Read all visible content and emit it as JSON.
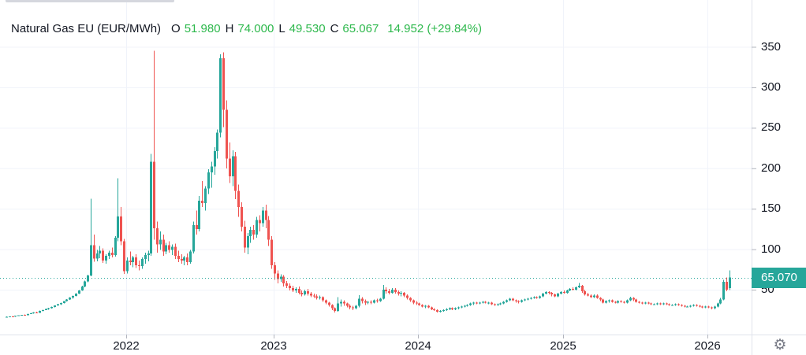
{
  "legend": {
    "symbol": "Natural Gas EU (EUR/MWh)",
    "o_label": "O",
    "o_value": "51.980",
    "h_label": "H",
    "h_value": "74.000",
    "l_label": "L",
    "l_value": "49.530",
    "c_label": "C",
    "c_value": "65.067",
    "change": "14.952 (+29.84%)"
  },
  "price_axis": {
    "ticks": [
      350,
      300,
      250,
      200,
      150,
      100,
      50
    ],
    "current_price_label": "65.070"
  },
  "time_axis": {
    "ticks": [
      {
        "label": "2022",
        "candle_index": 40
      },
      {
        "label": "2023",
        "candle_index": 89
      },
      {
        "label": "2024",
        "candle_index": 137
      },
      {
        "label": "2025",
        "candle_index": 185
      },
      {
        "label": "2026",
        "candle_index": 233
      }
    ]
  },
  "toolbar": {
    "settings_glyph": "⚙",
    "settings_icon": "gear-icon"
  },
  "colors": {
    "up": "#26a69a",
    "down": "#ef5350",
    "legend_green": "#2DB84C",
    "text": "#131722",
    "grid": "#f0f3fa",
    "border": "#e0e3eb",
    "tick": "#b2b5be",
    "icon": "#787b86",
    "price_tag_bg": "#26a69a"
  },
  "chart_data": {
    "type": "candlestick",
    "title": "Natural Gas EU",
    "unit": "EUR/MWh",
    "timeframe": "1W",
    "x_range": [
      "2021-03",
      "2026-02"
    ],
    "ylim": [
      0,
      365
    ],
    "grid": true,
    "current_price": 65.07,
    "latest": {
      "open": 51.98,
      "high": 74.0,
      "low": 49.53,
      "close": 65.067,
      "change": 14.952,
      "change_pct": 29.84
    },
    "candles_format": [
      "open",
      "high",
      "low",
      "close"
    ],
    "candles": [
      [
        16.2,
        16.8,
        15.9,
        16.5
      ],
      [
        16.5,
        17.2,
        16.1,
        17
      ],
      [
        17,
        17.4,
        16.5,
        16.8
      ],
      [
        16.8,
        18.1,
        16.6,
        17.9
      ],
      [
        17.9,
        18.6,
        17.4,
        18.4
      ],
      [
        18.4,
        19.2,
        18,
        19
      ],
      [
        19,
        19.6,
        18.3,
        18.7
      ],
      [
        18.7,
        20.4,
        18.5,
        20.1
      ],
      [
        20.1,
        21.3,
        19.8,
        21
      ],
      [
        21,
        22.4,
        20.6,
        22.1
      ],
      [
        22.1,
        23,
        21.2,
        21.6
      ],
      [
        21.6,
        24.2,
        21.4,
        23.9
      ],
      [
        23.9,
        25.3,
        23.5,
        25
      ],
      [
        25,
        26.6,
        24.6,
        26.2
      ],
      [
        26.2,
        27.5,
        25.4,
        27.1
      ],
      [
        27.1,
        29,
        26.8,
        28.6
      ],
      [
        28.6,
        30.8,
        28.2,
        30.4
      ],
      [
        30.4,
        32.6,
        30,
        32.2
      ],
      [
        32.2,
        34,
        31.1,
        33.5
      ],
      [
        33.5,
        36.2,
        33.1,
        35.8
      ],
      [
        35.8,
        38.4,
        35.3,
        38
      ],
      [
        38,
        40.6,
        37.5,
        40.2
      ],
      [
        40.2,
        42.8,
        39,
        42.3
      ],
      [
        42.3,
        45.6,
        41.8,
        45.1
      ],
      [
        45.1,
        49.8,
        44.6,
        49.2
      ],
      [
        49.2,
        54.7,
        48.5,
        54
      ],
      [
        54,
        61.2,
        53.2,
        60.3
      ],
      [
        60.3,
        68.5,
        59.4,
        67.4
      ],
      [
        67.4,
        162.5,
        66.8,
        105
      ],
      [
        105,
        118,
        84.6,
        88.3
      ],
      [
        88.3,
        99,
        85.1,
        95
      ],
      [
        95,
        104,
        89,
        98
      ],
      [
        98,
        101,
        83,
        86
      ],
      [
        86,
        94,
        82,
        92
      ],
      [
        92,
        98,
        88,
        96
      ],
      [
        96,
        102,
        90,
        93
      ],
      [
        93,
        116,
        91,
        114
      ],
      [
        114,
        187.8,
        110,
        140.5
      ],
      [
        140.5,
        152,
        105,
        110
      ],
      [
        110,
        113,
        69.5,
        73
      ],
      [
        73,
        90,
        70,
        86
      ],
      [
        86,
        97,
        80,
        84
      ],
      [
        84,
        92,
        78,
        90
      ],
      [
        90,
        94,
        77,
        80
      ],
      [
        80,
        86,
        74,
        79
      ],
      [
        79,
        90,
        76,
        88
      ],
      [
        88,
        96,
        82,
        93
      ],
      [
        93,
        98,
        85,
        95
      ],
      [
        95,
        218,
        92,
        208
      ],
      [
        208,
        345,
        112,
        126
      ],
      [
        126,
        134,
        96,
        106
      ],
      [
        106,
        122,
        99,
        112
      ],
      [
        112,
        118,
        92,
        97
      ],
      [
        97,
        108,
        94,
        105
      ],
      [
        105,
        110,
        96,
        99
      ],
      [
        99,
        106,
        93,
        103
      ],
      [
        103,
        107,
        88,
        92
      ],
      [
        92,
        98,
        84,
        88
      ],
      [
        88,
        94,
        82,
        86
      ],
      [
        86,
        92,
        80,
        90
      ],
      [
        90,
        95,
        80,
        84
      ],
      [
        84,
        99,
        82,
        97
      ],
      [
        97,
        134,
        95,
        130
      ],
      [
        130,
        148,
        118,
        125
      ],
      [
        125,
        166,
        122,
        160
      ],
      [
        160,
        184,
        152,
        157
      ],
      [
        157,
        178,
        148,
        175
      ],
      [
        175,
        199,
        168,
        195
      ],
      [
        195,
        208,
        176,
        202
      ],
      [
        202,
        226,
        192,
        221
      ],
      [
        221,
        248,
        212,
        244
      ],
      [
        244,
        341,
        238,
        336
      ],
      [
        336,
        343,
        251,
        272
      ],
      [
        272,
        284,
        200,
        212
      ],
      [
        212,
        232,
        182,
        190
      ],
      [
        190,
        222,
        178,
        215
      ],
      [
        215,
        220,
        162,
        172
      ],
      [
        172,
        180,
        140,
        152
      ],
      [
        152,
        158,
        122,
        128
      ],
      [
        128,
        135,
        96,
        102
      ],
      [
        102,
        120,
        94,
        116
      ],
      [
        116,
        128,
        108,
        124
      ],
      [
        124,
        130,
        112,
        118
      ],
      [
        118,
        140,
        114,
        136
      ],
      [
        136,
        142,
        122,
        132
      ],
      [
        132,
        152,
        128,
        148
      ],
      [
        148,
        155,
        126,
        136
      ],
      [
        136,
        141,
        104,
        112
      ],
      [
        112,
        116,
        76,
        80
      ],
      [
        80,
        84,
        62,
        70
      ],
      [
        70,
        74,
        58,
        63
      ],
      [
        63,
        69,
        60,
        66
      ],
      [
        66,
        68,
        54,
        58
      ],
      [
        58,
        61,
        52,
        55
      ],
      [
        55,
        58,
        49,
        52
      ],
      [
        52,
        55,
        47,
        49
      ],
      [
        49,
        53,
        46,
        51
      ],
      [
        51,
        54,
        44,
        46
      ],
      [
        46,
        49,
        42,
        44
      ],
      [
        44,
        50,
        43,
        48
      ],
      [
        48,
        51,
        43,
        45
      ],
      [
        45,
        47,
        41,
        43
      ],
      [
        43,
        45,
        40,
        42
      ],
      [
        42,
        44,
        38,
        40
      ],
      [
        40,
        43,
        38,
        41
      ],
      [
        41,
        42,
        35,
        37
      ],
      [
        37,
        38,
        32,
        34
      ],
      [
        34,
        35,
        29,
        31
      ],
      [
        31,
        32,
        25,
        27
      ],
      [
        27,
        28,
        22,
        24
      ],
      [
        24,
        41,
        23,
        33
      ],
      [
        33,
        38,
        29,
        35
      ],
      [
        35,
        37,
        30,
        33
      ],
      [
        33,
        34,
        28,
        30
      ],
      [
        30,
        32,
        26,
        28
      ],
      [
        28,
        30,
        25,
        27
      ],
      [
        27,
        31,
        26,
        30
      ],
      [
        30,
        43.5,
        28,
        39
      ],
      [
        39,
        41,
        33,
        36
      ],
      [
        36,
        38,
        31,
        34
      ],
      [
        34,
        36,
        32,
        35
      ],
      [
        35,
        37,
        32,
        34
      ],
      [
        34,
        38,
        33,
        37
      ],
      [
        37,
        39,
        34,
        36
      ],
      [
        36,
        40,
        35,
        39
      ],
      [
        39,
        56,
        38,
        50
      ],
      [
        50,
        53,
        45,
        48
      ],
      [
        48,
        51,
        44,
        46
      ],
      [
        46,
        52,
        45,
        50
      ],
      [
        50,
        52,
        45,
        47
      ],
      [
        47,
        49,
        43,
        45
      ],
      [
        45,
        48,
        42,
        46
      ],
      [
        46,
        47,
        41,
        43
      ],
      [
        43,
        44,
        38,
        40
      ],
      [
        40,
        41,
        35,
        37
      ],
      [
        37,
        38,
        32,
        34
      ],
      [
        34,
        36,
        31,
        33
      ],
      [
        33,
        34,
        30,
        31
      ],
      [
        31,
        32,
        28,
        29
      ],
      [
        29,
        31,
        27,
        30
      ],
      [
        30,
        31,
        27,
        28
      ],
      [
        28,
        29,
        25,
        26
      ],
      [
        26,
        27,
        24,
        25
      ],
      [
        25,
        26,
        22,
        23
      ],
      [
        23,
        25,
        22,
        24
      ],
      [
        24,
        26,
        23,
        25
      ],
      [
        25,
        27,
        24,
        26
      ],
      [
        26,
        28,
        25,
        27
      ],
      [
        27,
        28,
        25,
        26
      ],
      [
        26,
        28,
        25,
        27
      ],
      [
        27,
        29,
        26,
        28
      ],
      [
        28,
        30,
        27,
        29
      ],
      [
        29,
        31,
        28,
        30
      ],
      [
        30,
        32,
        29,
        31
      ],
      [
        31,
        34,
        30,
        33
      ],
      [
        33,
        35,
        31,
        34
      ],
      [
        34,
        35,
        32,
        33
      ],
      [
        33,
        35,
        32,
        34
      ],
      [
        34,
        36,
        33,
        35
      ],
      [
        35,
        36,
        33,
        34
      ],
      [
        34,
        35,
        32,
        34
      ],
      [
        34,
        35,
        31,
        32
      ],
      [
        32,
        33,
        30,
        31
      ],
      [
        31,
        33,
        30,
        32
      ],
      [
        32,
        34,
        31,
        33
      ],
      [
        33,
        36,
        32,
        35
      ],
      [
        35,
        38,
        34,
        37
      ],
      [
        37,
        40,
        36,
        39
      ],
      [
        39,
        40,
        36,
        37
      ],
      [
        37,
        38,
        34,
        36
      ],
      [
        36,
        37,
        33,
        35
      ],
      [
        35,
        38,
        34,
        37
      ],
      [
        37,
        39,
        36,
        38
      ],
      [
        38,
        40,
        37,
        39
      ],
      [
        39,
        41,
        38,
        40
      ],
      [
        40,
        42,
        39,
        41
      ],
      [
        41,
        42,
        39,
        40
      ],
      [
        40,
        43,
        39,
        42
      ],
      [
        42,
        46,
        41,
        45
      ],
      [
        45,
        48,
        44,
        47
      ],
      [
        47,
        48,
        44,
        46
      ],
      [
        46,
        47,
        42,
        44
      ],
      [
        44,
        45,
        41,
        42
      ],
      [
        42,
        46,
        41,
        45
      ],
      [
        45,
        48,
        44,
        47
      ],
      [
        47,
        49,
        45,
        46
      ],
      [
        46,
        50,
        45,
        49
      ],
      [
        49,
        52,
        48,
        51
      ],
      [
        51,
        53,
        49,
        50
      ],
      [
        50,
        54,
        49,
        53
      ],
      [
        53,
        58.3,
        52,
        55
      ],
      [
        55,
        56,
        46,
        48
      ],
      [
        48,
        50,
        43,
        44
      ],
      [
        44,
        46,
        42,
        43
      ],
      [
        43,
        44,
        40,
        41
      ],
      [
        41,
        44,
        40,
        43
      ],
      [
        43,
        44,
        39,
        40
      ],
      [
        40,
        41,
        36,
        38
      ],
      [
        38,
        39,
        33,
        34
      ],
      [
        34,
        37,
        33,
        36
      ],
      [
        36,
        38,
        34,
        37
      ],
      [
        37,
        38,
        34,
        35
      ],
      [
        35,
        36,
        33,
        34
      ],
      [
        34,
        37,
        33,
        36
      ],
      [
        36,
        37,
        34,
        35
      ],
      [
        35,
        36,
        33,
        34
      ],
      [
        34,
        38,
        33,
        37
      ],
      [
        37,
        41.5,
        36,
        40
      ],
      [
        40,
        41,
        36,
        38
      ],
      [
        38,
        39,
        34,
        35
      ],
      [
        35,
        36,
        33,
        34
      ],
      [
        34,
        35,
        32,
        33
      ],
      [
        33,
        35,
        32,
        34
      ],
      [
        34,
        35,
        32,
        33
      ],
      [
        33,
        34,
        31,
        32
      ],
      [
        32,
        33,
        31,
        32
      ],
      [
        32,
        34,
        31,
        33
      ],
      [
        33,
        34,
        31,
        32
      ],
      [
        32,
        34,
        31,
        33
      ],
      [
        33,
        34,
        31,
        32
      ],
      [
        32,
        33,
        30,
        31
      ],
      [
        31,
        32,
        30,
        31
      ],
      [
        31,
        33,
        30,
        32
      ],
      [
        32,
        33,
        30,
        31
      ],
      [
        31,
        32,
        29,
        30
      ],
      [
        30,
        31,
        28,
        29
      ],
      [
        29,
        30,
        28,
        29
      ],
      [
        29,
        31,
        28,
        30
      ],
      [
        30,
        32,
        29,
        31
      ],
      [
        31,
        32,
        29,
        30
      ],
      [
        30,
        31,
        28,
        29
      ],
      [
        29,
        30,
        27,
        28
      ],
      [
        28,
        30,
        27,
        29
      ],
      [
        29,
        30,
        27,
        28
      ],
      [
        28,
        29,
        26,
        27
      ],
      [
        27,
        30,
        26,
        29
      ],
      [
        29,
        34,
        28,
        33
      ],
      [
        33,
        40,
        32,
        38
      ],
      [
        38,
        62,
        37,
        60
      ],
      [
        60,
        65,
        48,
        50.1
      ],
      [
        51.98,
        74,
        49.53,
        65.067
      ]
    ]
  }
}
